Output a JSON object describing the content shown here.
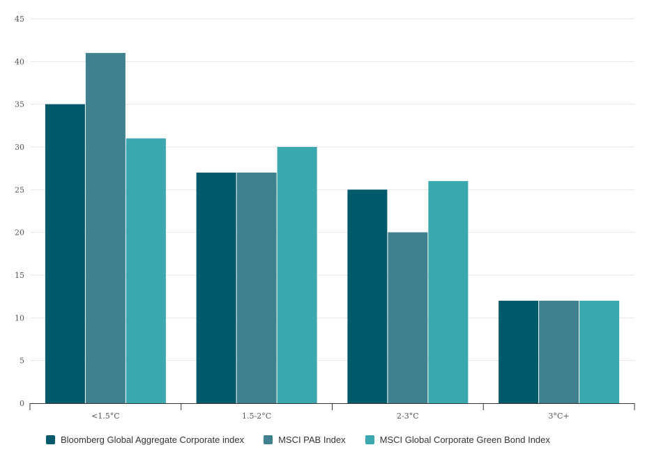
{
  "chart_data": {
    "type": "bar",
    "categories": [
      "<1.5°C",
      "1.5-2°C",
      "2-3°C",
      "3°C+"
    ],
    "series": [
      {
        "name": "Bloomberg Global Aggregate Corporate index",
        "color": "#005a6a",
        "values": [
          35,
          27,
          25,
          12
        ]
      },
      {
        "name": "MSCI PAB Index",
        "color": "#3f818e",
        "values": [
          41,
          27,
          20,
          12
        ]
      },
      {
        "name": "MSCI Global Corporate Green Bond Index",
        "color": "#3aa8ae",
        "values": [
          31,
          30,
          26,
          12
        ]
      }
    ],
    "y_ticks": [
      "0",
      "5",
      "10",
      "15",
      "20",
      "25",
      "30",
      "35",
      "40",
      "45"
    ],
    "ylim": [
      0,
      45
    ],
    "grid": true,
    "legend_position": "bottom-left",
    "title": "",
    "xlabel": "",
    "ylabel": ""
  }
}
